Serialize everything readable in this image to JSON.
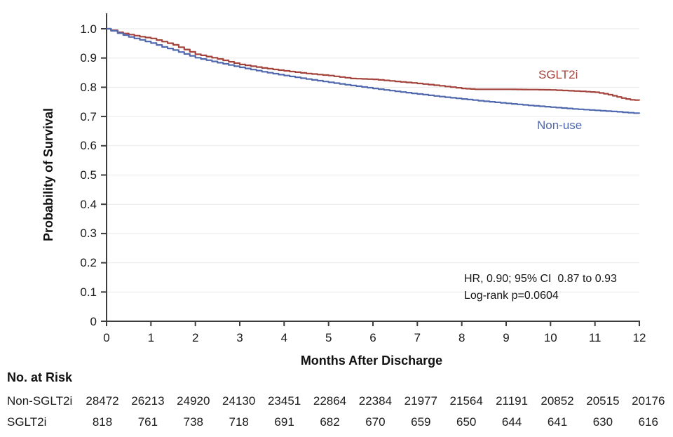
{
  "chart_data": {
    "type": "line",
    "variant": "kaplan-meier-step",
    "title": "",
    "xlabel": "Months After Discharge",
    "ylabel": "Probability of Survival",
    "xlim": [
      0,
      12
    ],
    "ylim": [
      0,
      1.0
    ],
    "xticks": [
      0,
      1,
      2,
      3,
      4,
      5,
      6,
      7,
      8,
      9,
      10,
      11,
      12
    ],
    "yticks": {
      "values": [
        0,
        0.1,
        0.2,
        0.3,
        0.4,
        0.5,
        0.6,
        0.7,
        0.8,
        0.9,
        1.0
      ],
      "labels": [
        "0",
        "0.1",
        "0.2",
        "0.3",
        "0.4",
        "0.5",
        "0.6",
        "0.7",
        "0.8",
        "0.9",
        "1.0"
      ]
    },
    "grid": "horizontal",
    "legend": "inline-labels",
    "annotations": [
      "HR, 0.90; 95% CI  0.87 to 0.93",
      "Log-rank p=0.0604"
    ],
    "series": [
      {
        "name": "SGLT2i",
        "color": "#A3433C",
        "x": [
          0,
          0.1,
          0.25,
          0.5,
          0.75,
          1,
          1.25,
          1.5,
          1.75,
          2,
          2.25,
          2.5,
          2.75,
          3,
          3.5,
          4,
          4.5,
          5,
          5.5,
          6,
          6.5,
          7,
          7.5,
          8,
          8.3,
          9,
          9.6,
          10,
          10.4,
          10.8,
          11,
          11.2,
          11.4,
          11.6,
          11.8,
          12
        ],
        "y": [
          1.0,
          0.995,
          0.988,
          0.98,
          0.973,
          0.967,
          0.956,
          0.945,
          0.929,
          0.913,
          0.905,
          0.897,
          0.887,
          0.878,
          0.866,
          0.856,
          0.847,
          0.84,
          0.83,
          0.827,
          0.82,
          0.813,
          0.805,
          0.796,
          0.793,
          0.793,
          0.792,
          0.791,
          0.788,
          0.785,
          0.783,
          0.778,
          0.771,
          0.763,
          0.757,
          0.755
        ]
      },
      {
        "name": "Non-use",
        "color": "#5068AE",
        "x": [
          0,
          0.1,
          0.25,
          0.5,
          0.75,
          1,
          1.25,
          1.5,
          1.75,
          2,
          2.5,
          3,
          3.5,
          4,
          4.5,
          5,
          5.5,
          6,
          6.5,
          7,
          7.5,
          8,
          8.5,
          9,
          9.5,
          10,
          10.5,
          11,
          11.5,
          12
        ],
        "y": [
          1.0,
          0.993,
          0.985,
          0.972,
          0.962,
          0.951,
          0.938,
          0.927,
          0.914,
          0.901,
          0.884,
          0.868,
          0.853,
          0.84,
          0.828,
          0.817,
          0.806,
          0.796,
          0.786,
          0.777,
          0.768,
          0.76,
          0.752,
          0.745,
          0.738,
          0.732,
          0.726,
          0.721,
          0.716,
          0.71
        ]
      }
    ],
    "risk_table": {
      "title": "No. at Risk",
      "time_points": [
        0,
        1,
        2,
        3,
        4,
        5,
        6,
        7,
        8,
        9,
        10,
        11,
        12
      ],
      "rows": [
        {
          "label": "Non-SGLT2i",
          "values": [
            "28472",
            "26213",
            "24920",
            "24130",
            "23451",
            "22864",
            "22384",
            "21977",
            "21564",
            "21191",
            "20852",
            "20515",
            "20176"
          ]
        },
        {
          "label": "SGLT2i",
          "values": [
            "818",
            "761",
            "738",
            "718",
            "691",
            "682",
            "670",
            "659",
            "650",
            "644",
            "641",
            "630",
            "616"
          ]
        }
      ]
    },
    "colors": {
      "axis": "#3d3d3d",
      "grid": "#e9e9e9",
      "text": "#1a1a1a"
    }
  }
}
